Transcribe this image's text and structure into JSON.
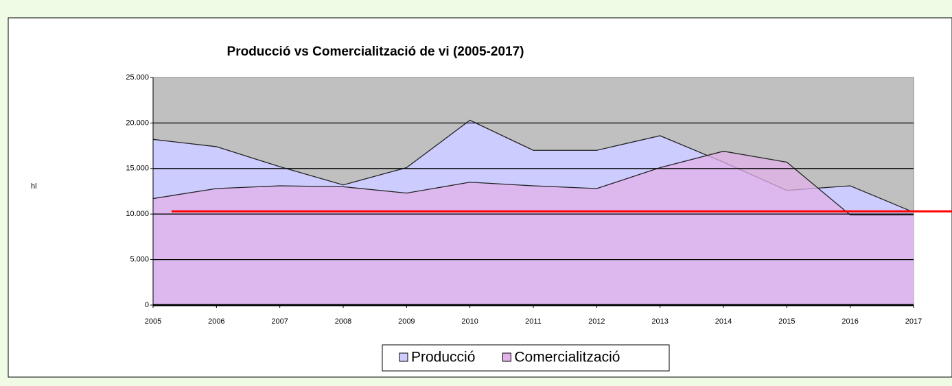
{
  "chart_data": {
    "type": "area",
    "title": "Producció vs Comercialització de vi (2005-2017)",
    "y_label": "hl",
    "x": [
      2005,
      2006,
      2007,
      2008,
      2009,
      2010,
      2011,
      2012,
      2013,
      2014,
      2015,
      2016,
      2017
    ],
    "xlim": [
      2005,
      2017
    ],
    "xticks": [
      2005,
      2006,
      2007,
      2008,
      2009,
      2010,
      2011,
      2012,
      2013,
      2014,
      2015,
      2016,
      2017
    ],
    "series": [
      {
        "name": "Producció",
        "color": "#ccccff",
        "values": [
          18200,
          17400,
          15200,
          13200,
          15100,
          20300,
          17000,
          17000,
          18600,
          15700,
          12600,
          13100,
          10200
        ]
      },
      {
        "name": "Comercialització",
        "color": "#e2b2ea",
        "values": [
          11700,
          12800,
          13100,
          13000,
          12300,
          13500,
          13100,
          12800,
          15100,
          16900,
          15700,
          9900,
          9900
        ]
      }
    ],
    "ylim": [
      0,
      25000
    ],
    "yticks": [
      0,
      {
        "value": 5000,
        "label": "5.000"
      },
      {
        "value": 10000,
        "label": "10.000"
      },
      {
        "value": 15000,
        "label": "15.000"
      },
      {
        "value": 20000,
        "label": "20.000"
      },
      {
        "value": 25000,
        "label": "25.000"
      }
    ],
    "grid": true,
    "reference_line": {
      "value": 10300,
      "color": "#ff0000"
    },
    "legend": "bottom"
  }
}
